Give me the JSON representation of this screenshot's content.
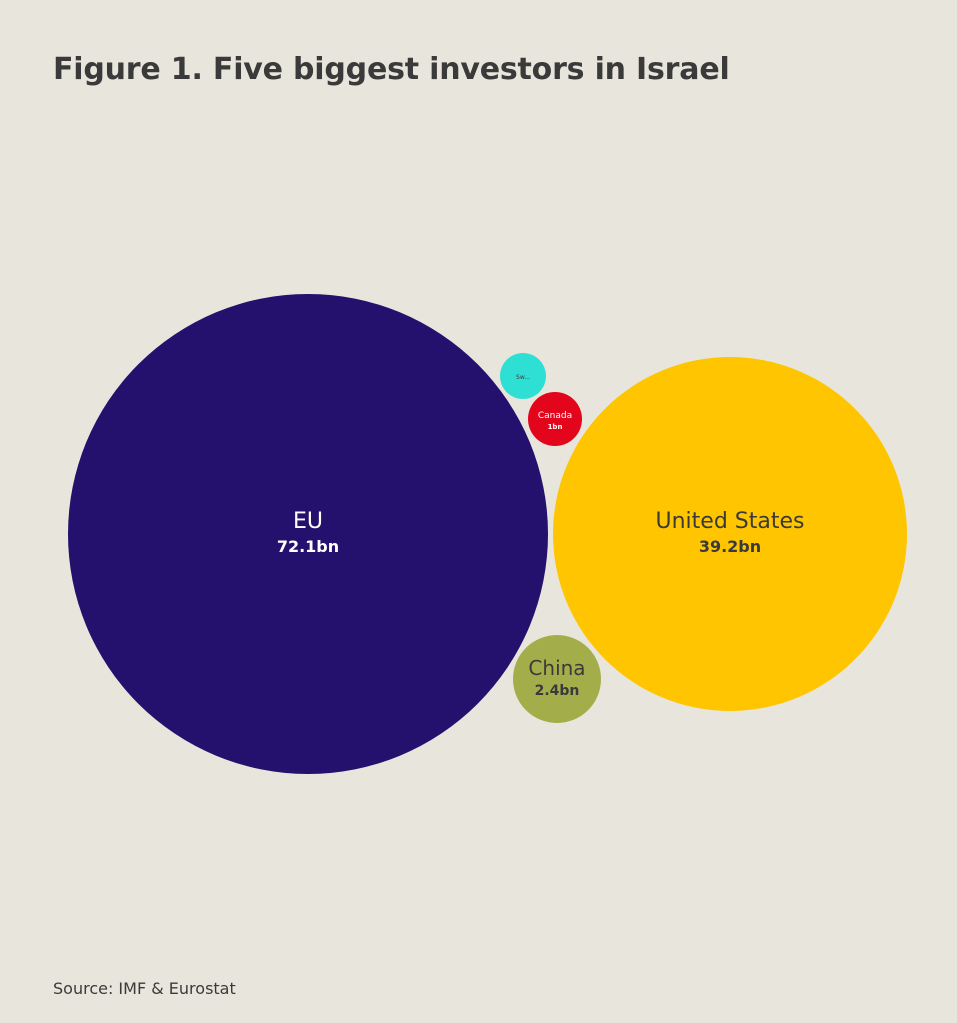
{
  "title": "Figure 1. Five biggest investors in Israel",
  "source": "Source: IMF & Eurostat",
  "chart_data": {
    "type": "bubble",
    "title": "Figure 1. Five biggest investors in Israel",
    "unit": "bn",
    "series": [
      {
        "name": "EU",
        "value": 72.1,
        "value_label": "72.1bn",
        "color": "#24106d",
        "text_color": "#ffffff"
      },
      {
        "name": "United States",
        "value": 39.2,
        "value_label": "39.2bn",
        "color": "#fec500",
        "text_color": "#3a3a3a"
      },
      {
        "name": "China",
        "value": 2.4,
        "value_label": "2.4bn",
        "color": "#a3ae4a",
        "text_color": "#3a3a3a"
      },
      {
        "name": "Canada",
        "value": 1,
        "value_label": "1bn",
        "color": "#e3051b",
        "text_color": "#ffffff"
      },
      {
        "name": "Sw...",
        "value": null,
        "value_label": "",
        "color": "#2ee0d3",
        "text_color": "#3a3a3a"
      }
    ]
  }
}
